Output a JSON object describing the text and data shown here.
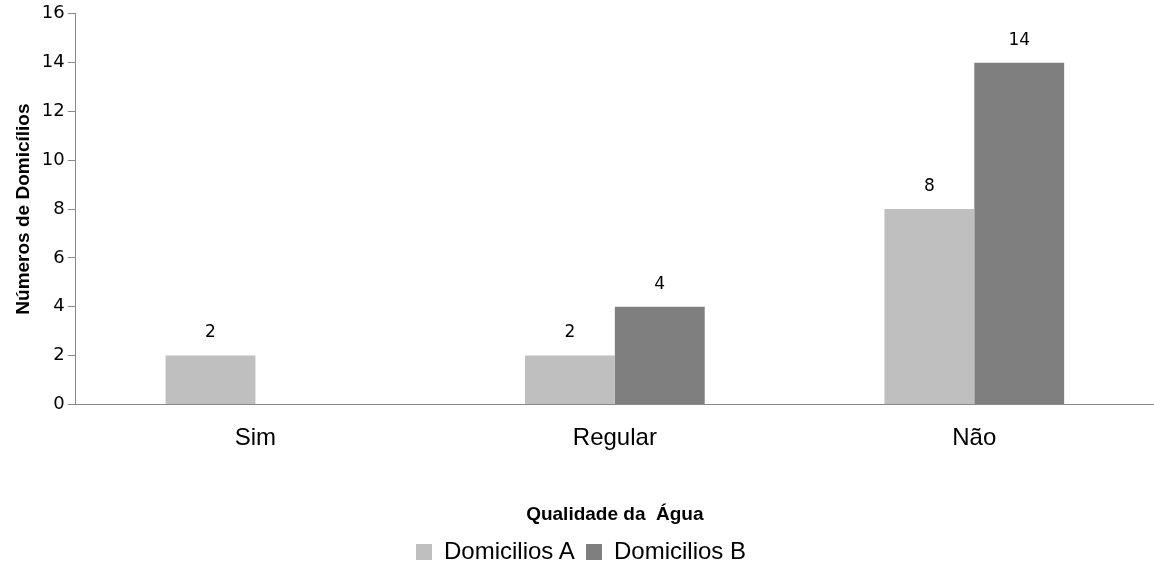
{
  "chart_data": {
    "type": "bar",
    "xlabel": "Qualidade da  Água",
    "ylabel": "Números de Domicílios",
    "categories": [
      "Sim",
      "Regular",
      "Não"
    ],
    "series": [
      {
        "name": "Domicilios A",
        "color": "#bfbfbf",
        "values": [
          2,
          2,
          8
        ],
        "value_labels": [
          "2",
          "2",
          "8"
        ]
      },
      {
        "name": "Domicilios B",
        "color": "#7f7f7f",
        "values": [
          0,
          4,
          14
        ],
        "value_labels": [
          null,
          "4",
          "14"
        ]
      }
    ],
    "ylim": [
      0,
      16
    ],
    "yticks": [
      0,
      2,
      4,
      6,
      8,
      10,
      12,
      14,
      16
    ],
    "grid": false,
    "legend": "bottom"
  }
}
